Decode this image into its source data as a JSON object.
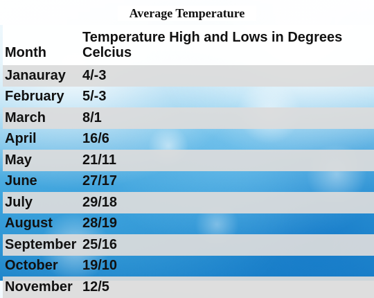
{
  "title": "Average Temperature",
  "table": {
    "headers": {
      "month": "Month",
      "temperature": "Temperature High and Lows in Degrees Celcius"
    },
    "rows": [
      {
        "month": "Janauray",
        "temp": "4/-3"
      },
      {
        "month": "February",
        "temp": "5/-3"
      },
      {
        "month": "March",
        "temp": "8/1"
      },
      {
        "month": "April",
        "temp": "16/6"
      },
      {
        "month": "May",
        "temp": "21/11"
      },
      {
        "month": "June",
        "temp": "27/17"
      },
      {
        "month": "July",
        "temp": "29/18"
      },
      {
        "month": "August",
        "temp": "28/19"
      },
      {
        "month": "September",
        "temp": "25/16"
      },
      {
        "month": "October",
        "temp": "19/10"
      },
      {
        "month": "November",
        "temp": "12/5"
      }
    ]
  }
}
